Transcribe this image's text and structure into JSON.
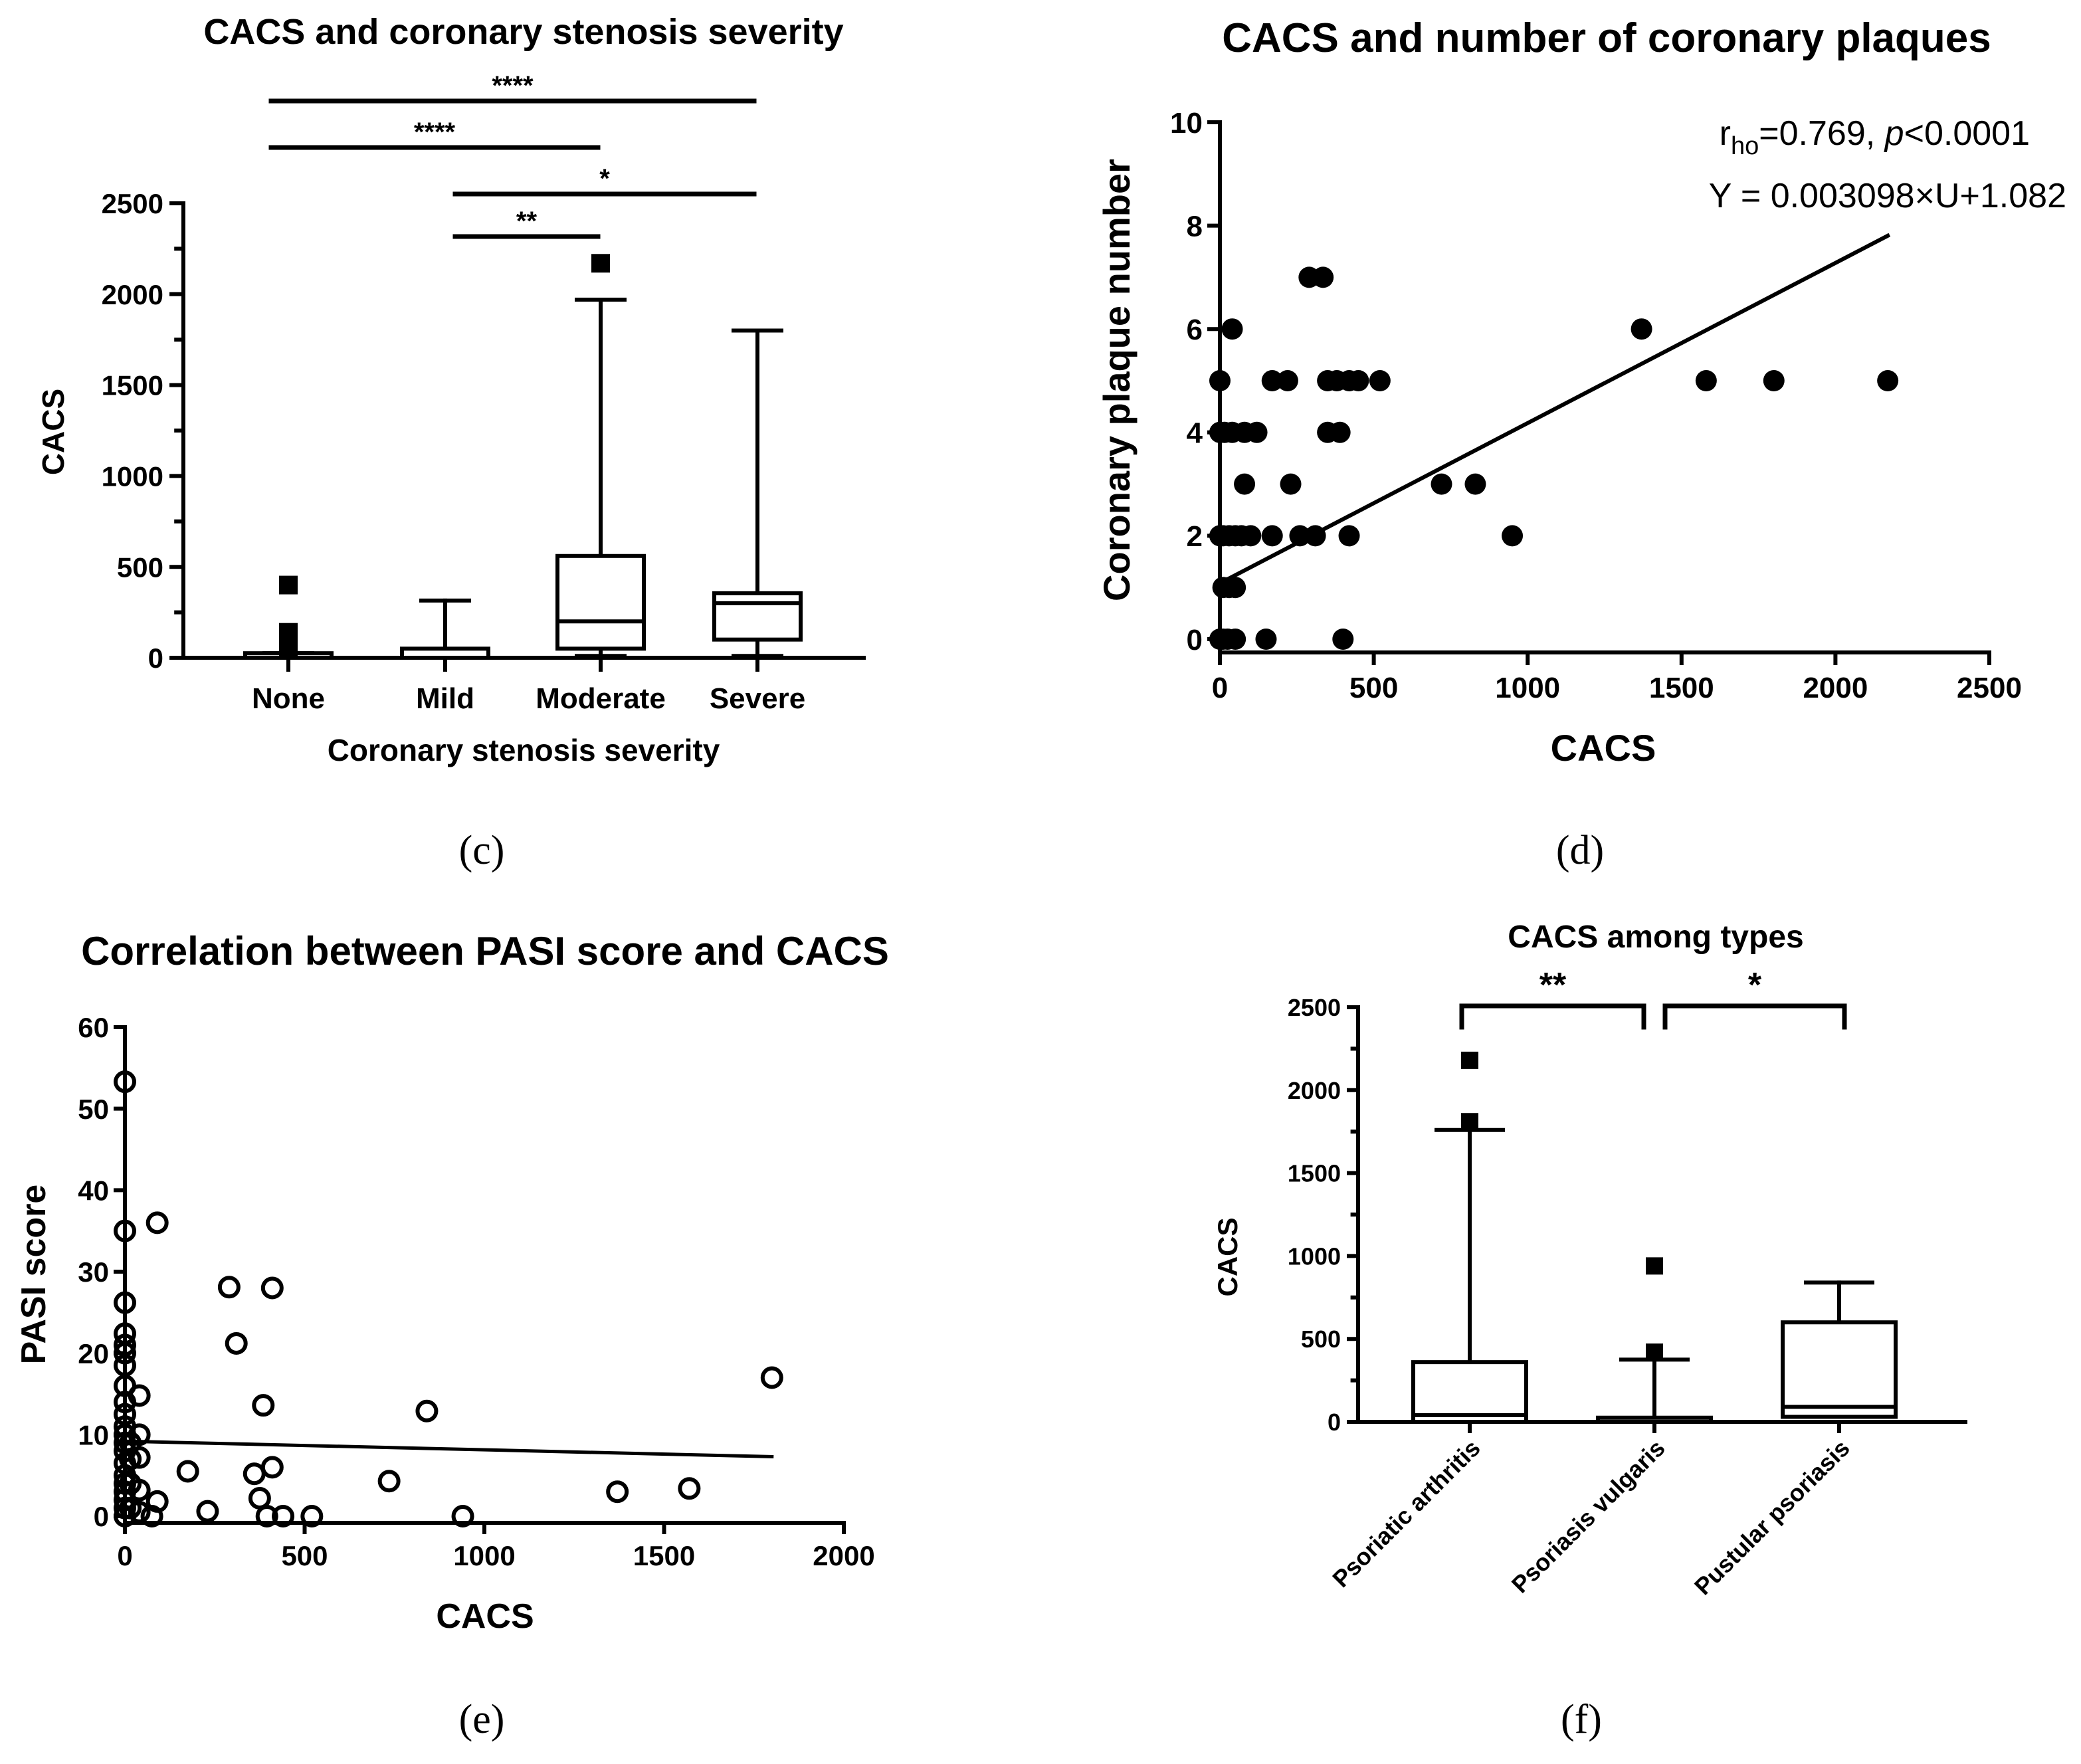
{
  "chart_data": [
    {
      "id": "c",
      "type": "box",
      "title": "CACS and coronary stenosis severity",
      "xlabel": "Coronary stenosis severity",
      "ylabel": "CACS",
      "ylim": [
        0,
        2500
      ],
      "yticks": [
        "0",
        "500",
        "1000",
        "1500",
        "2000",
        "2500"
      ],
      "categories": [
        "None",
        "Mild",
        "Moderate",
        "Severe"
      ],
      "boxes": [
        {
          "category": "None",
          "min": 0,
          "q1": 0,
          "median": 0,
          "q3": 25,
          "max": 25,
          "outliers": [
            400,
            60,
            140
          ]
        },
        {
          "category": "Mild",
          "min": 0,
          "q1": 0,
          "median": 0,
          "q3": 50,
          "max": 315,
          "outliers": []
        },
        {
          "category": "Moderate",
          "min": 10,
          "q1": 50,
          "median": 200,
          "q3": 560,
          "max": 1970,
          "outliers": [
            2170
          ]
        },
        {
          "category": "Severe",
          "min": 10,
          "q1": 100,
          "median": 300,
          "q3": 355,
          "max": 1800,
          "outliers": []
        }
      ],
      "significance": [
        {
          "from": "None",
          "to": "Severe",
          "label": "****"
        },
        {
          "from": "None",
          "to": "Moderate",
          "label": "****"
        },
        {
          "from": "Mild",
          "to": "Severe",
          "label": "*"
        },
        {
          "from": "Mild",
          "to": "Moderate",
          "label": "**"
        }
      ],
      "caption": "(c)"
    },
    {
      "id": "d",
      "type": "scatter",
      "title": "CACS and number of coronary plaques",
      "xlabel": "CACS",
      "ylabel": "Coronary plaque number",
      "xlim": [
        0,
        2500
      ],
      "ylim": [
        0,
        10
      ],
      "xticks": [
        "0",
        "500",
        "1000",
        "1500",
        "2000",
        "2500"
      ],
      "yticks": [
        "0",
        "2",
        "4",
        "6",
        "8",
        "10"
      ],
      "points": [
        [
          0,
          0
        ],
        [
          5,
          0
        ],
        [
          10,
          0
        ],
        [
          25,
          0
        ],
        [
          50,
          0
        ],
        [
          150,
          0
        ],
        [
          400,
          0
        ],
        [
          10,
          1
        ],
        [
          30,
          1
        ],
        [
          50,
          1
        ],
        [
          0,
          2
        ],
        [
          10,
          2
        ],
        [
          30,
          2
        ],
        [
          50,
          2
        ],
        [
          70,
          2
        ],
        [
          100,
          2
        ],
        [
          170,
          2
        ],
        [
          260,
          2
        ],
        [
          310,
          2
        ],
        [
          420,
          2
        ],
        [
          950,
          2
        ],
        [
          80,
          3
        ],
        [
          230,
          3
        ],
        [
          720,
          3
        ],
        [
          830,
          3
        ],
        [
          0,
          4
        ],
        [
          15,
          4
        ],
        [
          40,
          4
        ],
        [
          80,
          4
        ],
        [
          120,
          4
        ],
        [
          350,
          4
        ],
        [
          390,
          4
        ],
        [
          0,
          5
        ],
        [
          170,
          5
        ],
        [
          220,
          5
        ],
        [
          350,
          5
        ],
        [
          380,
          5
        ],
        [
          420,
          5
        ],
        [
          450,
          5
        ],
        [
          520,
          5
        ],
        [
          1580,
          5
        ],
        [
          1800,
          5
        ],
        [
          2170,
          5
        ],
        [
          40,
          6
        ],
        [
          1370,
          6
        ],
        [
          290,
          7
        ],
        [
          335,
          7
        ]
      ],
      "regression": {
        "slope": 0.003098,
        "intercept": 1.082,
        "x_range": [
          0,
          2170
        ]
      },
      "annotation_rho_prefix": "r",
      "annotation_rho_sub": "ho",
      "annotation_rho_value": "=0.769, ",
      "annotation_p_symbol": "p",
      "annotation_p_value": "<0.0001",
      "annotation_equation": "Y = 0.003098×U+1.082",
      "caption": "(d)"
    },
    {
      "id": "e",
      "type": "scatter",
      "title": "Correlation between PASI score and CACS",
      "xlabel": "CACS",
      "ylabel": "PASI score",
      "xlim": [
        0,
        2000
      ],
      "ylim": [
        0,
        60
      ],
      "xticks": [
        "0",
        "500",
        "1000",
        "1500",
        "2000"
      ],
      "yticks": [
        "0",
        "10",
        "20",
        "30",
        "40",
        "50",
        "60"
      ],
      "points": [
        [
          0,
          53.3
        ],
        [
          0,
          35
        ],
        [
          0,
          26.2
        ],
        [
          0,
          22.4
        ],
        [
          0,
          21
        ],
        [
          0,
          20
        ],
        [
          0,
          18.5
        ],
        [
          0,
          16
        ],
        [
          0,
          14
        ],
        [
          0,
          12.5
        ],
        [
          0,
          11
        ],
        [
          0,
          10
        ],
        [
          0,
          9
        ],
        [
          0,
          8
        ],
        [
          0,
          6.5
        ],
        [
          0,
          5
        ],
        [
          0,
          4
        ],
        [
          0,
          3
        ],
        [
          0,
          2
        ],
        [
          0,
          1
        ],
        [
          0,
          0
        ],
        [
          15,
          9
        ],
        [
          15,
          7
        ],
        [
          15,
          4
        ],
        [
          15,
          1
        ],
        [
          40,
          14.8
        ],
        [
          40,
          10
        ],
        [
          40,
          7.2
        ],
        [
          40,
          3.2
        ],
        [
          40,
          0.5
        ],
        [
          75,
          0
        ],
        [
          90,
          1.8
        ],
        [
          90,
          36
        ],
        [
          175,
          5.5
        ],
        [
          230,
          0.6
        ],
        [
          290,
          28.1
        ],
        [
          310,
          21.2
        ],
        [
          360,
          5.2
        ],
        [
          375,
          2.2
        ],
        [
          385,
          13.6
        ],
        [
          395,
          0
        ],
        [
          410,
          28
        ],
        [
          410,
          6
        ],
        [
          440,
          0
        ],
        [
          520,
          0
        ],
        [
          735,
          4.3
        ],
        [
          840,
          12.9
        ],
        [
          940,
          0
        ],
        [
          1370,
          3
        ],
        [
          1570,
          3.4
        ],
        [
          1800,
          17
        ]
      ],
      "regression": {
        "x_range": [
          0,
          1800
        ],
        "y_values": [
          9.2,
          7.3
        ]
      },
      "caption": "(e)"
    },
    {
      "id": "f",
      "type": "box",
      "title": "CACS among types",
      "xlabel": "",
      "ylabel": "CACS",
      "ylim": [
        0,
        2500
      ],
      "yticks": [
        "0",
        "500",
        "1000",
        "1500",
        "2000",
        "2500"
      ],
      "categories": [
        "Psoriatic arthritis",
        "Psoriasis vulgaris",
        "Pustular psoriasis"
      ],
      "boxes": [
        {
          "category": "Psoriatic arthritis",
          "min": 0,
          "q1": 0,
          "median": 40,
          "q3": 360,
          "max": 1760,
          "outliers": [
            1810,
            2180
          ]
        },
        {
          "category": "Psoriasis vulgaris",
          "min": 0,
          "q1": 0,
          "median": 0,
          "q3": 25,
          "max": 375,
          "outliers": [
            420,
            940
          ]
        },
        {
          "category": "Pustular psoriasis",
          "min": 30,
          "q1": 30,
          "median": 90,
          "q3": 600,
          "max": 840,
          "outliers": []
        }
      ],
      "significance": [
        {
          "from": "Psoriatic arthritis",
          "to": "Psoriasis vulgaris",
          "label": "**"
        },
        {
          "from": "Psoriasis vulgaris",
          "to": "Pustular psoriasis",
          "label": "*"
        }
      ],
      "caption": "(f)"
    }
  ]
}
